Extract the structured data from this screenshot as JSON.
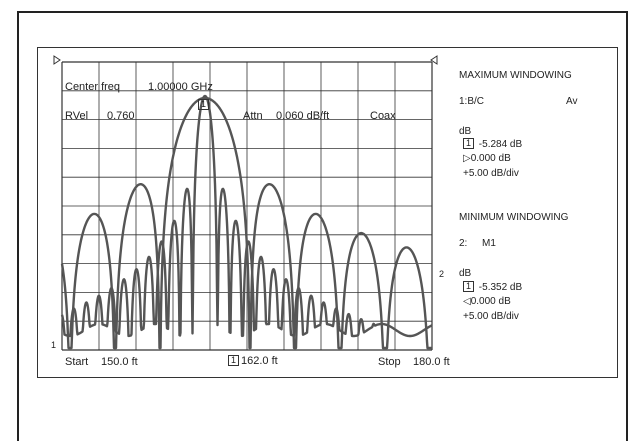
{
  "header": {
    "center_freq_label": "Center freq",
    "center_freq_value": "1.00000 GHz",
    "rvel_label": "RVel",
    "rvel_value": "0.760",
    "marker_label": "1",
    "attn_label": "Attn",
    "attn_value": "0.060 dB/ft",
    "cable_type": "Coax"
  },
  "footer": {
    "start_label": "Start",
    "start_value": "150.0 ft",
    "marker_label": "1",
    "marker_value": "162.0 ft",
    "stop_label": "Stop",
    "stop_value": "180.0 ft"
  },
  "trace_labels": {
    "left": "1",
    "right": "2"
  },
  "panel": {
    "max_title": "MAXIMUM WINDOWING",
    "max_channel": "1:B/C",
    "max_mode": "Av",
    "max_unit": "dB",
    "max_marker_label": "1",
    "max_marker_value": "-5.284 dB",
    "max_ref_symbol": "▷",
    "max_ref_value": "0.000 dB",
    "max_scale": "+5.00 dB/div",
    "min_title": "MINIMUM WINDOWING",
    "min_channel": "2:",
    "min_mode": "M1",
    "min_unit": "dB",
    "min_marker_label": "1",
    "min_marker_value": "-5.352 dB",
    "min_ref_symbol": "◁",
    "min_ref_value": "0.000 dB",
    "min_scale": "+5.00 dB/div"
  },
  "colors": {
    "trace": "#555555",
    "grid": "#333333"
  }
}
